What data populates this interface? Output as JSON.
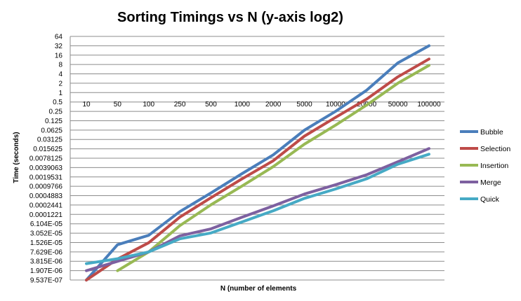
{
  "chart_data": {
    "type": "line",
    "title": "Sorting Timings vs N (y-axis log2)",
    "xlabel": "N (number of elements",
    "ylabel": "Time (seconds)",
    "y_scale": "log2",
    "categories": [
      "10",
      "50",
      "100",
      "250",
      "500",
      "1000",
      "2000",
      "5000",
      "10000",
      "20000",
      "50000",
      "100000"
    ],
    "y_ticks": [
      "64",
      "32",
      "16",
      "8",
      "4",
      "2",
      "1",
      "0.5",
      "0.25",
      "0.125",
      "0.0625",
      "0.03125",
      "0.015625",
      "0.0078125",
      "0.0039063",
      "0.0019531",
      "0.0009766",
      "0.0004883",
      "0.0002441",
      "0.0001221",
      "6.104E-05",
      "3.052E-05",
      "1.526E-05",
      "7.629E-06",
      "3.815E-06",
      "1.907E-06",
      "9.537E-07"
    ],
    "ylim": [
      9.537e-07,
      64
    ],
    "grid": true,
    "legend_position": "right",
    "series": [
      {
        "name": "Bubble",
        "color": "#4a7ebb",
        "values": [
          9.5e-07,
          1.3e-05,
          2.6e-05,
          0.00015,
          0.0006,
          0.0025,
          0.01,
          0.062,
          0.25,
          1.2,
          9,
          32
        ]
      },
      {
        "name": "Selection",
        "color": "#be4b48",
        "values": [
          9.5e-07,
          4.5e-06,
          1.5e-05,
          0.0001,
          0.00042,
          0.0017,
          0.0065,
          0.04,
          0.16,
          0.62,
          3.2,
          12
        ]
      },
      {
        "name": "Insertion",
        "color": "#98b954",
        "values": [
          null,
          1.9e-06,
          7.6e-06,
          5.3e-05,
          0.00025,
          0.001,
          0.0042,
          0.022,
          0.09,
          0.4,
          2,
          7.5
        ]
      },
      {
        "name": "Merge",
        "color": "#7d60a0",
        "values": [
          1.9e-06,
          3.8e-06,
          7.6e-06,
          2.5e-05,
          4.2e-05,
          0.0001,
          0.00023,
          0.00055,
          0.0011,
          0.0023,
          0.006,
          0.016
        ]
      },
      {
        "name": "Quick",
        "color": "#46aac5",
        "values": [
          3.2e-06,
          4.6e-06,
          7.6e-06,
          2e-05,
          3.1e-05,
          7e-05,
          0.00016,
          0.0004,
          0.0008,
          0.0017,
          0.005,
          0.0105
        ]
      }
    ]
  }
}
